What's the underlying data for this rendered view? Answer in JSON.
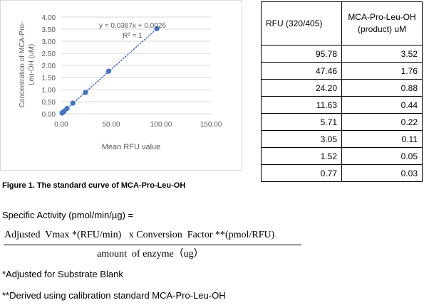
{
  "chart_data": {
    "type": "scatter",
    "x": [
      95.78,
      47.46,
      24.2,
      11.63,
      5.71,
      3.05,
      1.52,
      0.77
    ],
    "y": [
      3.52,
      1.76,
      0.88,
      0.44,
      0.22,
      0.11,
      0.05,
      0.03
    ],
    "xlabel": "Mean RFU value",
    "ylabel": "Concentration of MCA-Pro-Leu-OH (uM)",
    "xlim": [
      0,
      150
    ],
    "ylim": [
      0,
      4
    ],
    "x_ticks": [
      "0.00",
      "50.00",
      "100.00",
      "150.00"
    ],
    "y_ticks": [
      "0.00",
      "0.50",
      "1.00",
      "1.50",
      "2.00",
      "2.50",
      "3.00",
      "3.50",
      "4.00"
    ],
    "trendline": {
      "slope": 0.0367,
      "intercept": 0.0026,
      "style": "dotted",
      "color": "#4472c4"
    },
    "equation": "y = 0.0367x + 0.0026",
    "r_squared": "R² = 1",
    "marker_color": "#4472c4",
    "grid": "horizontal"
  },
  "caption": "Figure 1. The standard curve of MCA-Pro-Leu-OH",
  "table": {
    "headers": [
      "RFU (320/405)",
      "MCA-Pro-Leu-OH (product) uM"
    ],
    "rows": [
      [
        "95.78",
        "3.52"
      ],
      [
        "47.46",
        "1.76"
      ],
      [
        "24.20",
        "0.88"
      ],
      [
        "11.63",
        "0.44"
      ],
      [
        "5.71",
        "0.22"
      ],
      [
        "3.05",
        "0.11"
      ],
      [
        "1.52",
        "0.05"
      ],
      [
        "0.77",
        "0.03"
      ]
    ]
  },
  "formula": {
    "label": "Specific Activity (pmol/min/µg) =",
    "numerator": "Adjusted  Vmax *(RFU/min)   x Conversion  Factor **(pmol/RFU)",
    "denominator": "amount  of enzyme（ug）"
  },
  "notes": {
    "note1": "*Adjusted for Substrate Blank",
    "note2": "**Derived using calibration standard MCA-Pro-Leu-OH"
  }
}
